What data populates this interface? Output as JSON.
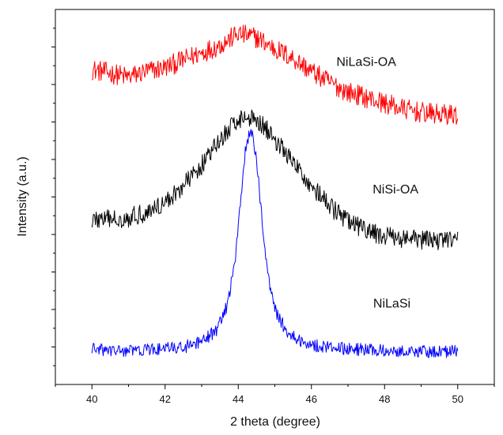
{
  "chart_data": {
    "type": "line",
    "xlabel": "2 theta (degree)",
    "ylabel": "Intensity (a.u.)",
    "xlim": [
      39,
      51
    ],
    "ylim": [
      0,
      10
    ],
    "x_ticks": [
      40,
      42,
      44,
      46,
      48,
      50
    ],
    "x_tick_labels": [
      "40",
      "42",
      "44",
      "46",
      "48",
      "50"
    ],
    "y_tick_labels_shown": false,
    "grid": false,
    "series": [
      {
        "name": "NiLaSi-OA",
        "color": "#ff0000",
        "x": [
          40,
          40.5,
          41,
          41.5,
          42,
          42.5,
          43,
          43.5,
          44,
          44.5,
          45,
          45.5,
          46,
          46.5,
          47,
          47.5,
          48,
          48.5,
          49,
          49.5,
          50
        ],
        "y": [
          8.4,
          8.3,
          8.2,
          8.35,
          8.45,
          8.65,
          8.85,
          9.05,
          9.35,
          9.25,
          8.95,
          8.7,
          8.35,
          8.05,
          7.8,
          7.65,
          7.5,
          7.35,
          7.25,
          7.2,
          7.2
        ]
      },
      {
        "name": "NiSi-OA",
        "color": "#000000",
        "x": [
          40,
          40.5,
          41,
          41.5,
          42,
          42.5,
          43,
          43.5,
          44,
          44.5,
          45,
          45.5,
          46,
          46.5,
          47,
          47.5,
          48,
          48.5,
          49,
          49.5,
          50
        ],
        "y": [
          4.4,
          4.4,
          4.45,
          4.6,
          4.85,
          5.3,
          5.85,
          6.5,
          7.1,
          7.1,
          6.55,
          5.9,
          5.3,
          4.75,
          4.35,
          4.1,
          3.95,
          3.9,
          3.85,
          3.85,
          3.85
        ]
      },
      {
        "name": "NiLaSi",
        "color": "#0000ff",
        "x": [
          40,
          40.5,
          41,
          41.5,
          42,
          42.5,
          43,
          43.4,
          43.7,
          43.9,
          44.05,
          44.2,
          44.35,
          44.5,
          44.65,
          44.8,
          45,
          45.3,
          45.6,
          46,
          46.5,
          47,
          47.5,
          48,
          48.5,
          49,
          49.5,
          50
        ],
        "y": [
          0.95,
          0.9,
          0.9,
          0.92,
          0.95,
          1.0,
          1.12,
          1.45,
          2.1,
          3.2,
          4.8,
          6.3,
          6.8,
          6.0,
          4.4,
          3.0,
          2.0,
          1.45,
          1.2,
          1.05,
          1.0,
          0.95,
          0.92,
          0.9,
          0.9,
          0.88,
          0.88,
          0.88
        ]
      }
    ],
    "annotations": [
      {
        "text": "NiLaSi-OA",
        "x": 47.5,
        "y": 8.5
      },
      {
        "text": "NiSi-OA",
        "x": 48.3,
        "y": 5.1
      },
      {
        "text": "NiLaSi",
        "x": 48.2,
        "y": 2.05
      }
    ]
  }
}
